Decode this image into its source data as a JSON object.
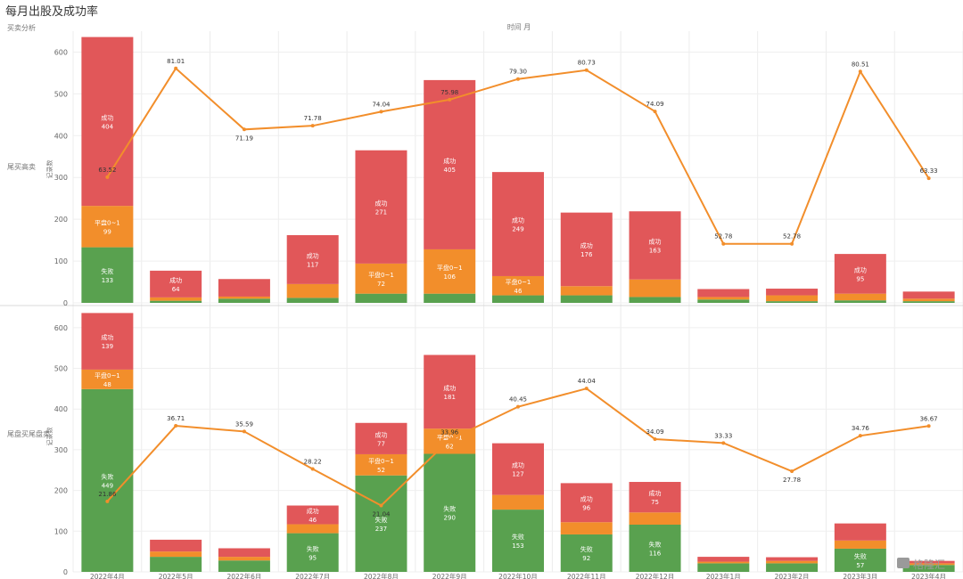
{
  "title": "每月出股及成功率",
  "header_left": "买卖分析",
  "header_center": "时间 月",
  "watermark": "格隆汇",
  "chart_data": [
    {
      "type": "bar",
      "stacked": true,
      "row_label": "尾买高卖",
      "ylabel": "记录数",
      "ylim": [
        0,
        650
      ],
      "yticks": [
        0,
        100,
        200,
        300,
        400,
        500,
        600
      ],
      "categories": [
        "2022年4月",
        "2022年5月",
        "2022年6月",
        "2022年7月",
        "2022年8月",
        "2022年9月",
        "2022年10月",
        "2022年11月",
        "2022年12月",
        "2023年1月",
        "2023年2月",
        "2023年3月",
        "2023年4月"
      ],
      "series": [
        {
          "name": "失败",
          "color": "#59a14f",
          "values": [
            133,
            5,
            10,
            12,
            22,
            22,
            18,
            18,
            14,
            8,
            4,
            6,
            4
          ],
          "labels": [
            "133",
            "",
            "",
            "",
            "",
            "",
            "",
            "",
            "",
            "",
            "",
            "",
            ""
          ]
        },
        {
          "name": "平盘0~1",
          "color": "#f28e2b",
          "values": [
            99,
            8,
            5,
            33,
            72,
            106,
            46,
            22,
            42,
            6,
            14,
            16,
            6
          ],
          "labels": [
            "99",
            "",
            "",
            "",
            "72",
            "106",
            "46",
            "",
            "",
            "",
            "",
            "",
            ""
          ]
        },
        {
          "name": "成功",
          "color": "#e15759",
          "values": [
            404,
            64,
            42,
            117,
            271,
            405,
            249,
            176,
            163,
            19,
            16,
            95,
            17
          ],
          "labels": [
            "404",
            "64",
            "",
            "117",
            "271",
            "405",
            "249",
            "176",
            "163",
            "",
            "",
            "95",
            ""
          ]
        }
      ],
      "line": {
        "name": "成功率",
        "color": "#f28e2b",
        "values": [
          63.52,
          81.01,
          71.19,
          71.78,
          74.04,
          75.98,
          79.3,
          80.73,
          74.09,
          52.78,
          52.78,
          80.51,
          63.33
        ],
        "labels": [
          "63.52",
          "81.01",
          "71.19",
          "71.78",
          "74.04",
          "75.98",
          "79.30",
          "80.73",
          "74.09",
          "52.78",
          "52.78",
          "80.51",
          "63.33"
        ]
      }
    },
    {
      "type": "bar",
      "stacked": true,
      "row_label": "尾盘买尾盘卖",
      "ylabel": "记录数",
      "ylim": [
        0,
        650
      ],
      "yticks": [
        0,
        100,
        200,
        300,
        400,
        500,
        600
      ],
      "categories": [
        "2022年4月",
        "2022年5月",
        "2022年6月",
        "2022年7月",
        "2022年8月",
        "2022年9月",
        "2022年10月",
        "2022年11月",
        "2022年12月",
        "2023年1月",
        "2023年2月",
        "2023年3月",
        "2023年4月"
      ],
      "series": [
        {
          "name": "失败",
          "color": "#59a14f",
          "values": [
            449,
            37,
            28,
            95,
            237,
            290,
            153,
            92,
            116,
            21,
            21,
            57,
            17
          ],
          "labels": [
            "449",
            "",
            "",
            "95",
            "237",
            "290",
            "153",
            "92",
            "116",
            "",
            "",
            "57",
            ""
          ]
        },
        {
          "name": "平盘0~1",
          "color": "#f28e2b",
          "values": [
            48,
            13,
            9,
            22,
            52,
            62,
            36,
            30,
            30,
            4,
            6,
            20,
            4
          ],
          "labels": [
            "48",
            "",
            "",
            "",
            "52",
            "62",
            "",
            "",
            "",
            "",
            "",
            "",
            ""
          ]
        },
        {
          "name": "成功",
          "color": "#e15759",
          "values": [
            139,
            29,
            21,
            46,
            77,
            181,
            127,
            96,
            75,
            12,
            9,
            42,
            6
          ],
          "labels": [
            "139",
            "",
            "",
            "46",
            "77",
            "181",
            "127",
            "96",
            "75",
            "",
            "",
            "",
            ""
          ]
        }
      ],
      "line": {
        "name": "成功率",
        "color": "#f28e2b",
        "values": [
          21.86,
          36.71,
          35.59,
          28.22,
          21.04,
          33.96,
          40.45,
          44.04,
          34.09,
          33.33,
          27.78,
          34.76,
          36.67
        ],
        "labels": [
          "21.86",
          "36.71",
          "35.59",
          "28.22",
          "21.04",
          "33.96",
          "40.45",
          "44.04",
          "34.09",
          "33.33",
          "27.78",
          "34.76",
          "36.67"
        ]
      }
    }
  ]
}
